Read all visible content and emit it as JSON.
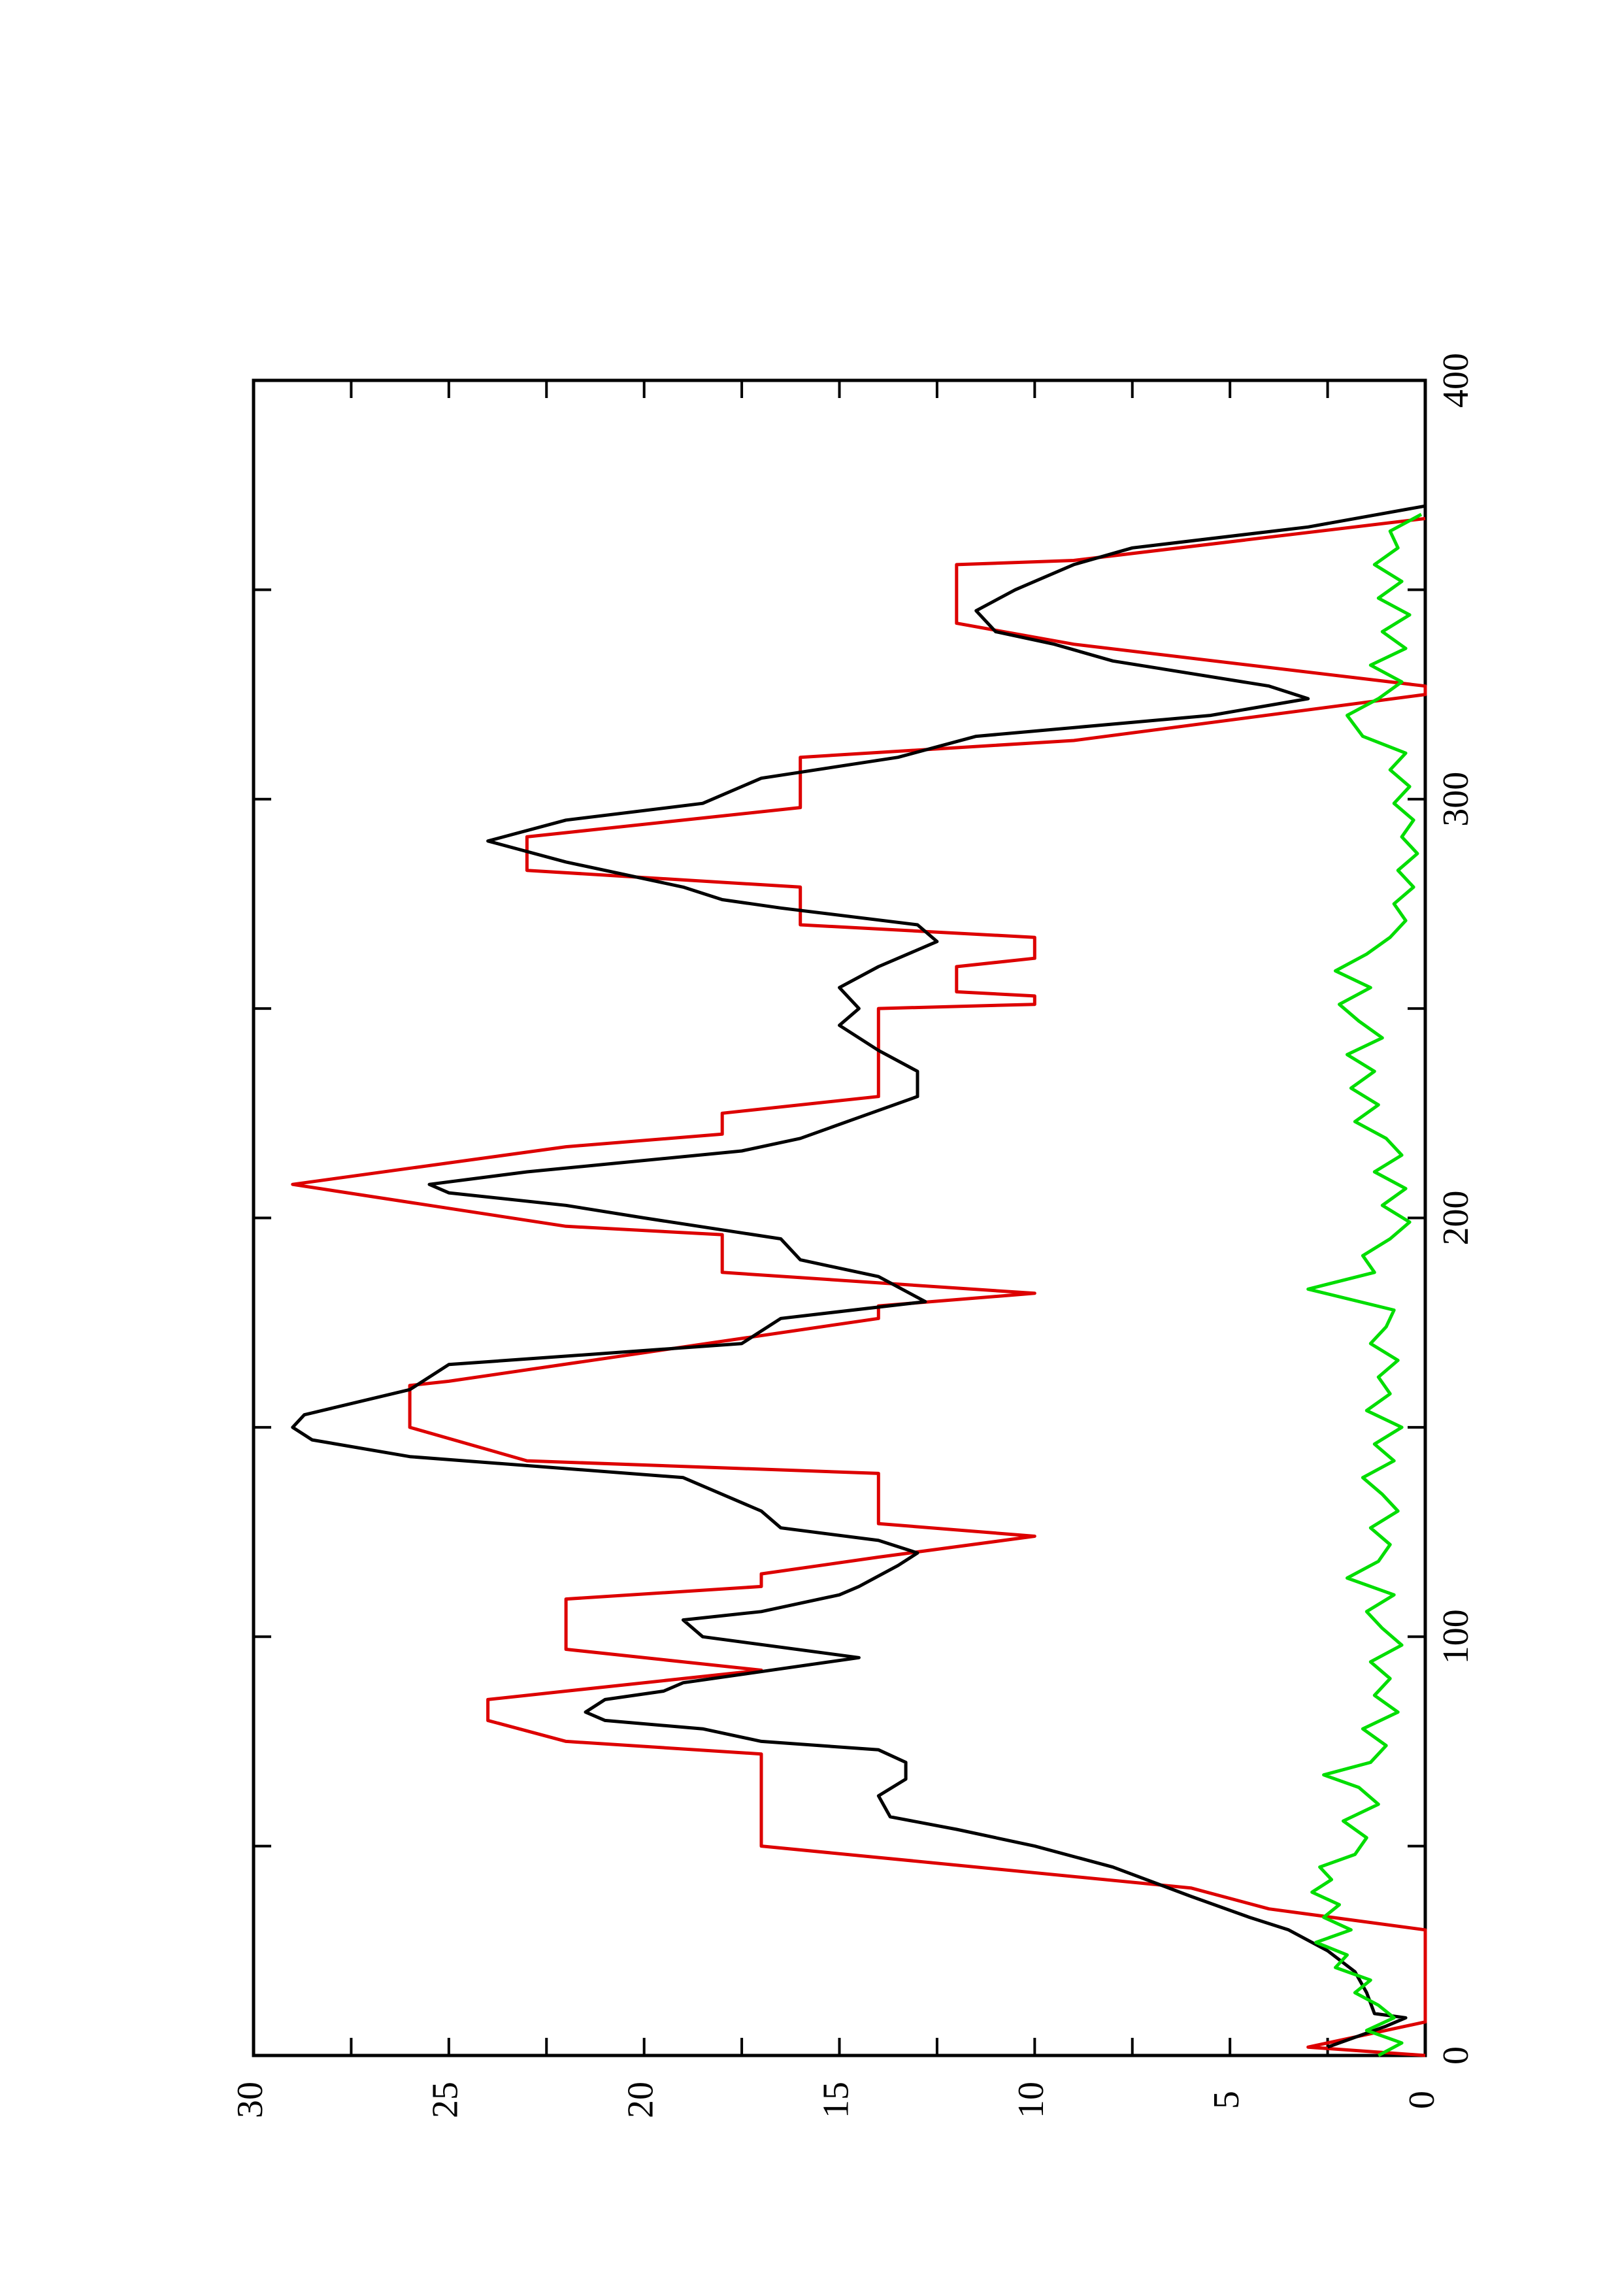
{
  "chart_data": {
    "type": "line",
    "xlim": [
      0,
      400
    ],
    "xticks": [
      0,
      100,
      200,
      300,
      400
    ],
    "ylim": [
      0,
      30
    ],
    "yticks": [
      0,
      5,
      10,
      15,
      20,
      25,
      30
    ],
    "grid": false,
    "series": [
      {
        "color": "#dd0000",
        "x": [
          0,
          2,
          8,
          30,
          35,
          40,
          50,
          72,
          75,
          80,
          85,
          87,
          92,
          97,
          109,
          112,
          115,
          119,
          124,
          127,
          139,
          142,
          150,
          160,
          161,
          176,
          179,
          182,
          187,
          196,
          198,
          208,
          217,
          220,
          225,
          229,
          250,
          251,
          253,
          254,
          260,
          262,
          267,
          270,
          279,
          283,
          291,
          298,
          310,
          314,
          325,
          327,
          337,
          342,
          356,
          357,
          367
        ],
        "values": [
          0,
          3,
          0,
          0,
          4,
          6,
          17,
          17,
          22,
          24,
          24,
          22,
          17,
          22,
          22,
          17,
          17,
          14,
          10,
          14,
          14,
          23,
          26,
          26,
          25,
          14,
          14,
          10,
          18,
          18,
          22,
          29,
          22,
          18,
          18,
          14,
          14,
          10,
          10,
          12,
          12,
          10,
          10,
          16,
          16,
          23,
          23,
          16,
          16,
          9,
          0,
          0,
          9,
          12,
          12,
          9,
          0
        ]
      },
      {
        "color": "#000000",
        "x": [
          2,
          7,
          9,
          10,
          15,
          20,
          25,
          30,
          33,
          38,
          45,
          50,
          54,
          57,
          62,
          66,
          70,
          73,
          75,
          78,
          80,
          82,
          85,
          87,
          89,
          95,
          100,
          104,
          106,
          110,
          112,
          117,
          120,
          123,
          126,
          130,
          138,
          143,
          147,
          150,
          153,
          159,
          165,
          170,
          176,
          180,
          186,
          190,
          195,
          200,
          203,
          206,
          208,
          211,
          216,
          219,
          224,
          229,
          235,
          240,
          246,
          250,
          255,
          260,
          266,
          270,
          274,
          276,
          279,
          285,
          290,
          295,
          299,
          305,
          310,
          315,
          320,
          324,
          327,
          333,
          337,
          340,
          345,
          350,
          356,
          360,
          365,
          370
        ],
        "values": [
          2.5,
          1,
          0.5,
          1.3,
          1.5,
          1.8,
          2.5,
          3.5,
          4.5,
          6,
          8,
          10,
          12,
          13.7,
          14,
          13.3,
          13.3,
          14,
          17,
          18.5,
          21,
          21.5,
          21,
          19.5,
          19,
          14.5,
          18.5,
          19,
          17,
          15,
          14.5,
          13.5,
          13,
          14,
          16.5,
          17,
          19,
          26,
          28.5,
          29,
          28.7,
          26,
          25,
          17.5,
          16.5,
          12.8,
          14,
          16,
          16.5,
          20,
          22,
          25,
          25.5,
          23,
          17.5,
          16,
          14.5,
          13,
          13,
          14,
          15,
          14.5,
          15,
          14,
          12.5,
          13,
          16.5,
          18,
          19,
          22,
          24,
          22,
          18.5,
          17,
          13.5,
          11.5,
          5.5,
          3,
          4,
          8,
          9.5,
          11,
          11.5,
          10.5,
          9,
          7.5,
          3,
          0
        ]
      },
      {
        "color": "#00dd00",
        "x": [
          0,
          3,
          6,
          9,
          12,
          15,
          18,
          21,
          24,
          27,
          30,
          33,
          36,
          39,
          42,
          45,
          48,
          52,
          56,
          60,
          64,
          67,
          70,
          74,
          78,
          82,
          86,
          90,
          94,
          98,
          102,
          106,
          110,
          114,
          118,
          122,
          126,
          130,
          134,
          138,
          142,
          146,
          150,
          154,
          158,
          162,
          166,
          170,
          174,
          178,
          183,
          187,
          191,
          195,
          199,
          203,
          207,
          211,
          215,
          219,
          223,
          227,
          231,
          235,
          239,
          243,
          247,
          251,
          255,
          259,
          263,
          267,
          271,
          275,
          279,
          283,
          287,
          291,
          295,
          299,
          303,
          307,
          311,
          315,
          320,
          324,
          328,
          332,
          336,
          340,
          344,
          348,
          352,
          356,
          360,
          364,
          368
        ],
        "values": [
          1.2,
          0.6,
          1.5,
          0.8,
          1.2,
          1.8,
          1.4,
          2.3,
          2.0,
          2.8,
          1.9,
          2.6,
          2.2,
          2.9,
          2.4,
          2.7,
          1.8,
          1.5,
          2.1,
          1.2,
          1.7,
          2.6,
          1.4,
          1.0,
          1.6,
          0.7,
          1.3,
          0.9,
          1.4,
          0.6,
          1.1,
          1.5,
          0.8,
          2.0,
          1.2,
          0.9,
          1.4,
          0.7,
          1.1,
          1.6,
          0.8,
          1.3,
          0.6,
          1.5,
          0.9,
          1.2,
          0.7,
          1.4,
          1.0,
          0.8,
          3.0,
          1.3,
          1.6,
          0.9,
          0.4,
          1.1,
          0.5,
          1.3,
          0.6,
          1.0,
          1.8,
          1.2,
          1.9,
          1.3,
          2.0,
          1.1,
          1.7,
          2.2,
          1.4,
          2.3,
          1.5,
          0.9,
          0.5,
          0.8,
          0.3,
          0.7,
          0.2,
          0.6,
          0.3,
          0.8,
          0.4,
          0.9,
          0.5,
          1.6,
          2.0,
          1.2,
          0.6,
          1.4,
          0.5,
          1.1,
          0.4,
          1.2,
          0.6,
          1.3,
          0.7,
          0.9,
          0.1
        ]
      }
    ]
  }
}
